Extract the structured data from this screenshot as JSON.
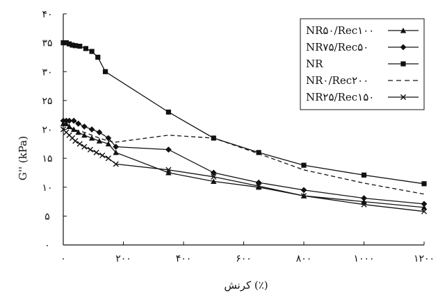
{
  "chart_data": {
    "type": "line",
    "title": "",
    "xlabel": "کرنش (٪)",
    "ylabel": "G'' (kPa)",
    "xlim": [
      0,
      1200
    ],
    "ylim": [
      0,
      40
    ],
    "x_ticks": [
      0,
      200,
      400,
      600,
      800,
      1000,
      1200
    ],
    "y_ticks": [
      0,
      5,
      10,
      15,
      20,
      25,
      30,
      35,
      40
    ],
    "x_tick_labels": [
      "۰",
      "۲۰۰",
      "۴۰۰",
      "۶۰۰",
      "۸۰۰",
      "۱۰۰۰",
      "۱۲۰۰"
    ],
    "y_tick_labels": [
      "۰",
      "۵",
      "۱۰",
      "۱۵",
      "۲۰",
      "۲۵",
      "۳۰",
      "۳۵",
      "۴۰"
    ],
    "legend_position": "top-right",
    "grid": false,
    "series": [
      {
        "name": "NR۵۰/Rec۱۰۰",
        "marker": "triangle",
        "dash": "solid",
        "color": "#111111",
        "x": [
          0,
          10,
          20,
          35,
          50,
          70,
          95,
          120,
          150,
          175,
          350,
          500,
          650,
          800,
          1000,
          1200
        ],
        "y": [
          21,
          21,
          20.5,
          20,
          19.5,
          19,
          18.5,
          18,
          17.5,
          16,
          12.5,
          11,
          10,
          8.5,
          7.5,
          6.5
        ]
      },
      {
        "name": "NR۷۵/Rec۵۰",
        "marker": "diamond",
        "dash": "solid",
        "color": "#111111",
        "x": [
          0,
          10,
          20,
          35,
          50,
          70,
          95,
          120,
          150,
          175,
          350,
          500,
          650,
          800,
          1000,
          1200
        ],
        "y": [
          21.5,
          21.5,
          21.5,
          21.5,
          21,
          20.5,
          20,
          19.5,
          18.5,
          17,
          16.5,
          12.5,
          10.8,
          9.5,
          8.1,
          7.1
        ]
      },
      {
        "name": "NR",
        "marker": "square",
        "dash": "solid",
        "color": "#111111",
        "x": [
          0,
          10,
          20,
          30,
          40,
          55,
          75,
          95,
          115,
          140,
          350,
          500,
          650,
          800,
          1000,
          1200
        ],
        "y": [
          35,
          35,
          34.8,
          34.6,
          34.5,
          34.4,
          34,
          33.5,
          32.5,
          30,
          23,
          18.5,
          16,
          13.8,
          12.1,
          10.6
        ]
      },
      {
        "name": "NR۰/Rec۲۰۰",
        "marker": "none",
        "dash": "dashed",
        "color": "#111111",
        "x": [
          0,
          15,
          30,
          50,
          70,
          95,
          120,
          150,
          175,
          350,
          500,
          650,
          800,
          1000,
          1200
        ],
        "y": [
          21,
          20.5,
          20,
          19.8,
          19.5,
          19,
          18.5,
          18,
          17.8,
          19,
          18.5,
          15.8,
          13,
          10.7,
          8.8
        ]
      },
      {
        "name": "NR۲۵/Rec۱۵۰",
        "marker": "x",
        "dash": "solid",
        "color": "#111111",
        "x": [
          0,
          10,
          20,
          30,
          40,
          55,
          70,
          90,
          110,
          130,
          150,
          175,
          350,
          500,
          650,
          800,
          1000,
          1200
        ],
        "y": [
          20,
          19.5,
          19,
          18.5,
          18,
          17.5,
          17,
          16.5,
          16,
          15.5,
          15,
          14,
          13,
          11.8,
          10.2,
          8.5,
          7,
          5.8
        ]
      }
    ]
  }
}
